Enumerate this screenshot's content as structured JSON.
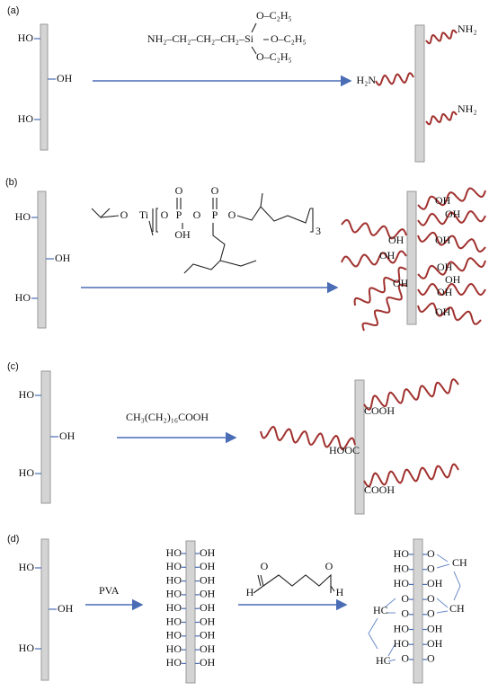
{
  "panels": [
    {
      "label": "(a)",
      "substrate": [
        "HO",
        "OH",
        "HO"
      ],
      "reagent": [
        "NH₂–CH₂–CH₂–CH₂–Si",
        "O–C₂H₅",
        "O–C₂H₅",
        "O–C₂H₅"
      ],
      "product": [
        "NH₂",
        "H₂N",
        "NH₂"
      ]
    },
    {
      "label": "(b)",
      "substrate": [
        "HO",
        "OH",
        "HO"
      ],
      "reagent": [
        "O",
        "Ti",
        "O",
        "P",
        "O",
        "P",
        "O",
        "O",
        "O",
        "OH",
        "3"
      ],
      "product": [
        "OH",
        "OH",
        "OH",
        "OH",
        "OH",
        "OH",
        "OH",
        "OH",
        "OH",
        "OH"
      ]
    },
    {
      "label": "(c)",
      "substrate": [
        "HO",
        "OH",
        "HO"
      ],
      "reagent": [
        "CH₃(CH₂)₁₆COOH"
      ],
      "product": [
        "COOH",
        "HOOC",
        "COOH"
      ]
    },
    {
      "label": "(d)",
      "substrate": [
        "HO",
        "OH",
        "HO"
      ],
      "reagent": [
        "PVA"
      ],
      "intermediate": {
        "left": [
          "HO",
          "HO",
          "HO",
          "HO",
          "HO",
          "HO",
          "HO",
          "HO",
          "HO"
        ],
        "right": [
          "OH",
          "OH",
          "OH",
          "OH",
          "OH",
          "OH",
          "OH",
          "OH",
          "OH"
        ]
      },
      "crosslinker": [
        "O",
        "O",
        "H",
        "H"
      ],
      "product": {
        "left": [
          "HO",
          "HO",
          "HO",
          "O",
          "O",
          "HO",
          "HO",
          "O"
        ],
        "right": [
          "O",
          "O",
          "OH",
          "O",
          "O",
          "OH",
          "OH",
          "O"
        ],
        "bridges": [
          "CH",
          "CH",
          "HC",
          "HC"
        ]
      }
    }
  ]
}
